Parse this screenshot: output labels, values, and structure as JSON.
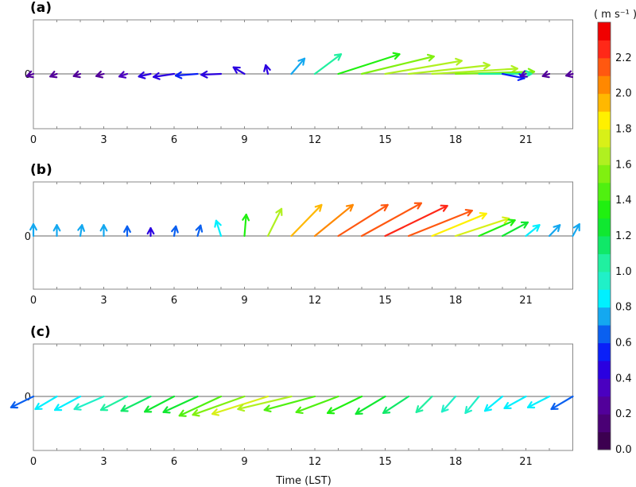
{
  "chart_data": {
    "type": "vector-stick",
    "xlabel": "Time (LST)",
    "xlim": [
      0,
      23
    ],
    "xticks": [
      "0",
      "3",
      "6",
      "9",
      "12",
      "15",
      "18",
      "21"
    ],
    "zero_label": "0",
    "hours": [
      0,
      1,
      2,
      3,
      4,
      5,
      6,
      7,
      8,
      9,
      10,
      11,
      12,
      13,
      14,
      15,
      16,
      17,
      18,
      19,
      20,
      21,
      22,
      23
    ],
    "panels": [
      {
        "label": "(a)",
        "u": [
          -0.15,
          -0.15,
          -0.15,
          -0.17,
          -0.18,
          -0.27,
          -0.47,
          -0.5,
          -0.45,
          -0.25,
          -0.05,
          0.3,
          0.6,
          1.4,
          1.65,
          1.75,
          1.85,
          1.95,
          1.8,
          1.2,
          0.5,
          -0.12,
          -0.15,
          -0.15
        ],
        "v": [
          -0.05,
          -0.06,
          -0.05,
          -0.05,
          -0.06,
          -0.06,
          -0.07,
          -0.04,
          -0.02,
          0.15,
          0.2,
          0.35,
          0.45,
          0.45,
          0.4,
          0.3,
          0.2,
          0.12,
          0.05,
          0,
          -0.1,
          -0.05,
          -0.05,
          -0.04
        ],
        "speed": [
          0.25,
          0.25,
          0.25,
          0.28,
          0.3,
          0.4,
          0.45,
          0.5,
          0.45,
          0.4,
          0.4,
          0.7,
          1.0,
          1.3,
          1.55,
          1.6,
          1.65,
          1.6,
          1.5,
          1.05,
          0.5,
          0.3,
          0.25,
          0.25
        ]
      },
      {
        "label": "(b)",
        "u": [
          0,
          0,
          0.04,
          0,
          0,
          0,
          0.04,
          0.07,
          -0.11,
          0.04,
          0.31,
          0.69,
          0.87,
          1.13,
          1.36,
          1.42,
          1.45,
          1.24,
          1.22,
          0.82,
          0.58,
          0.31,
          0.24,
          0.15
        ],
        "v": [
          0.27,
          0.25,
          0.25,
          0.25,
          0.22,
          0.18,
          0.22,
          0.24,
          0.35,
          0.49,
          0.62,
          0.71,
          0.71,
          0.71,
          0.75,
          0.69,
          0.58,
          0.51,
          0.4,
          0.36,
          0.31,
          0.25,
          0.25,
          0.27
        ],
        "speed": [
          0.7,
          0.7,
          0.7,
          0.7,
          0.6,
          0.45,
          0.6,
          0.6,
          0.85,
          1.3,
          1.6,
          1.95,
          2.05,
          2.1,
          2.1,
          2.25,
          2.1,
          1.85,
          1.7,
          1.35,
          1.2,
          0.85,
          0.7,
          0.7
        ]
      },
      {
        "label": "(c)",
        "u": [
          -0.51,
          -0.49,
          -0.58,
          -0.67,
          -0.6,
          -0.67,
          -0.67,
          -0.78,
          -0.95,
          -1.18,
          -1.27,
          -1.22,
          -1.15,
          -0.96,
          -0.78,
          -0.67,
          -0.58,
          -0.36,
          -0.31,
          -0.31,
          -0.4,
          -0.49,
          -0.49,
          -0.49
        ],
        "v": [
          -0.25,
          -0.29,
          -0.31,
          -0.29,
          -0.31,
          -0.33,
          -0.35,
          -0.36,
          -0.44,
          -0.42,
          -0.4,
          -0.29,
          -0.31,
          -0.36,
          -0.38,
          -0.4,
          -0.38,
          -0.36,
          -0.35,
          -0.38,
          -0.33,
          -0.27,
          -0.25,
          -0.29
        ],
        "speed": [
          0.65,
          0.85,
          0.85,
          0.95,
          1.05,
          1.1,
          1.2,
          1.25,
          1.45,
          1.55,
          1.75,
          1.65,
          1.45,
          1.4,
          1.3,
          1.2,
          1.1,
          1.0,
          0.95,
          0.9,
          0.85,
          0.85,
          0.8,
          0.65
        ]
      }
    ],
    "colorbar": {
      "unit_label": "( m s⁻¹ )",
      "range": [
        0,
        2.4
      ],
      "ticks": [
        "0.0",
        "0.2",
        "0.4",
        "0.6",
        "0.8",
        "1.0",
        "1.2",
        "1.4",
        "1.6",
        "1.8",
        "2.0",
        "2.2"
      ],
      "colors": [
        "#3c0050",
        "#4a0075",
        "#52009a",
        "#4a00c0",
        "#2a00e0",
        "#0a20f8",
        "#0a60f0",
        "#14a8f0",
        "#00f0ff",
        "#20f0c8",
        "#20f0a0",
        "#10e868",
        "#10e830",
        "#20f010",
        "#50f010",
        "#80f010",
        "#b0f020",
        "#d8f018",
        "#fff000",
        "#ffb800",
        "#ff8800",
        "#ff5810",
        "#ff2818",
        "#f00000"
      ]
    }
  }
}
